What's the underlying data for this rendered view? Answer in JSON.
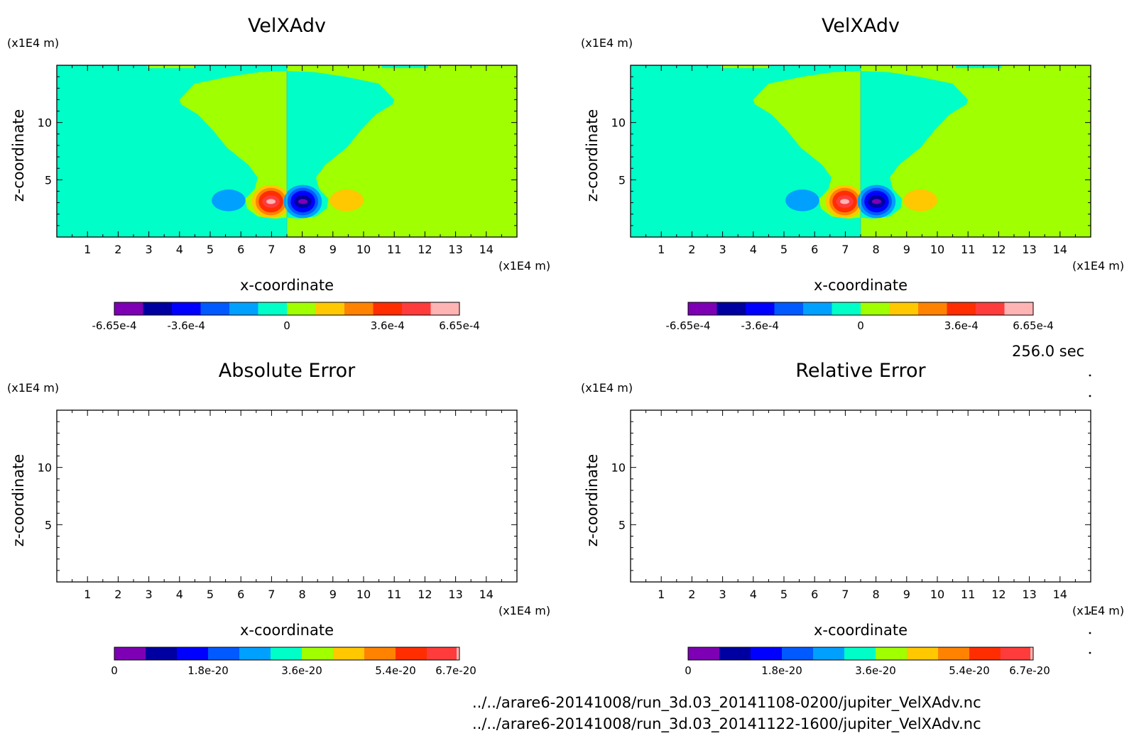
{
  "time_label": "256.0 sec",
  "files": [
    "../../arare6-20141008/run_3d.03_20141108-0200/jupiter_VelXAdv.nc",
    "../../arare6-20141008/run_3d.03_20141122-1600/jupiter_VelXAdv.nc"
  ],
  "palette": [
    "#7d00b4",
    "#0000a0",
    "#0000ff",
    "#005aff",
    "#00a0ff",
    "#00ffc8",
    "#a0ff00",
    "#ffc800",
    "#ff8200",
    "#ff2d00",
    "#ff3c3c",
    "#ffb4b4"
  ],
  "chart_data": [
    {
      "type": "heatmap",
      "title": "VelXAdv",
      "xlabel": "x-coordinate",
      "ylabel": "z-coordinate",
      "x_unit": "(x1E4 m)",
      "y_unit": "(x1E4 m)",
      "x_ticks": [
        "1",
        "2",
        "3",
        "4",
        "5",
        "6",
        "7",
        "8",
        "9",
        "10",
        "11",
        "12",
        "13",
        "14"
      ],
      "y_ticks": [
        "5",
        "10"
      ],
      "xlim": [
        0,
        15
      ],
      "ylim": [
        0,
        15
      ],
      "colorbar_labels": [
        "-6.65e-4",
        "-3.6e-4",
        "0",
        "3.6e-4",
        "6.65e-4"
      ],
      "levels": 12
    },
    {
      "type": "heatmap",
      "title": "VelXAdv",
      "xlabel": "x-coordinate",
      "ylabel": "z-coordinate",
      "x_unit": "(x1E4 m)",
      "y_unit": "(x1E4 m)",
      "x_ticks": [
        "1",
        "2",
        "3",
        "4",
        "5",
        "6",
        "7",
        "8",
        "9",
        "10",
        "11",
        "12",
        "13",
        "14"
      ],
      "y_ticks": [
        "5",
        "10"
      ],
      "xlim": [
        0,
        15
      ],
      "ylim": [
        0,
        15
      ],
      "colorbar_labels": [
        "-6.65e-4",
        "-3.6e-4",
        "0",
        "3.6e-4",
        "6.65e-4"
      ],
      "levels": 12
    },
    {
      "type": "heatmap",
      "title": "Absolute Error",
      "xlabel": "x-coordinate",
      "ylabel": "z-coordinate",
      "x_unit": "(x1E4 m)",
      "y_unit": "(x1E4 m)",
      "x_ticks": [
        "1",
        "2",
        "3",
        "4",
        "5",
        "6",
        "7",
        "8",
        "9",
        "10",
        "11",
        "12",
        "13",
        "14"
      ],
      "y_ticks": [
        "5",
        "10"
      ],
      "xlim": [
        0,
        15
      ],
      "ylim": [
        0,
        15
      ],
      "colorbar_labels": [
        "0",
        "1.8e-20",
        "3.6e-20",
        "5.4e-20",
        "6.7e-20"
      ],
      "levels": 11
    },
    {
      "type": "heatmap",
      "title": "Relative Error",
      "xlabel": "x-coordinate",
      "ylabel": "z-coordinate",
      "x_unit": "(x1E4 m)",
      "y_unit": "(x1E4 m)",
      "x_ticks": [
        "1",
        "2",
        "3",
        "4",
        "5",
        "6",
        "7",
        "8",
        "9",
        "10",
        "11",
        "12",
        "13",
        "14"
      ],
      "y_ticks": [
        "5",
        "10"
      ],
      "xlim": [
        0,
        15
      ],
      "ylim": [
        0,
        15
      ],
      "colorbar_labels": [
        "0",
        "1.8e-20",
        "3.6e-20",
        "5.4e-20",
        "6.7e-20"
      ],
      "levels": 11
    }
  ]
}
